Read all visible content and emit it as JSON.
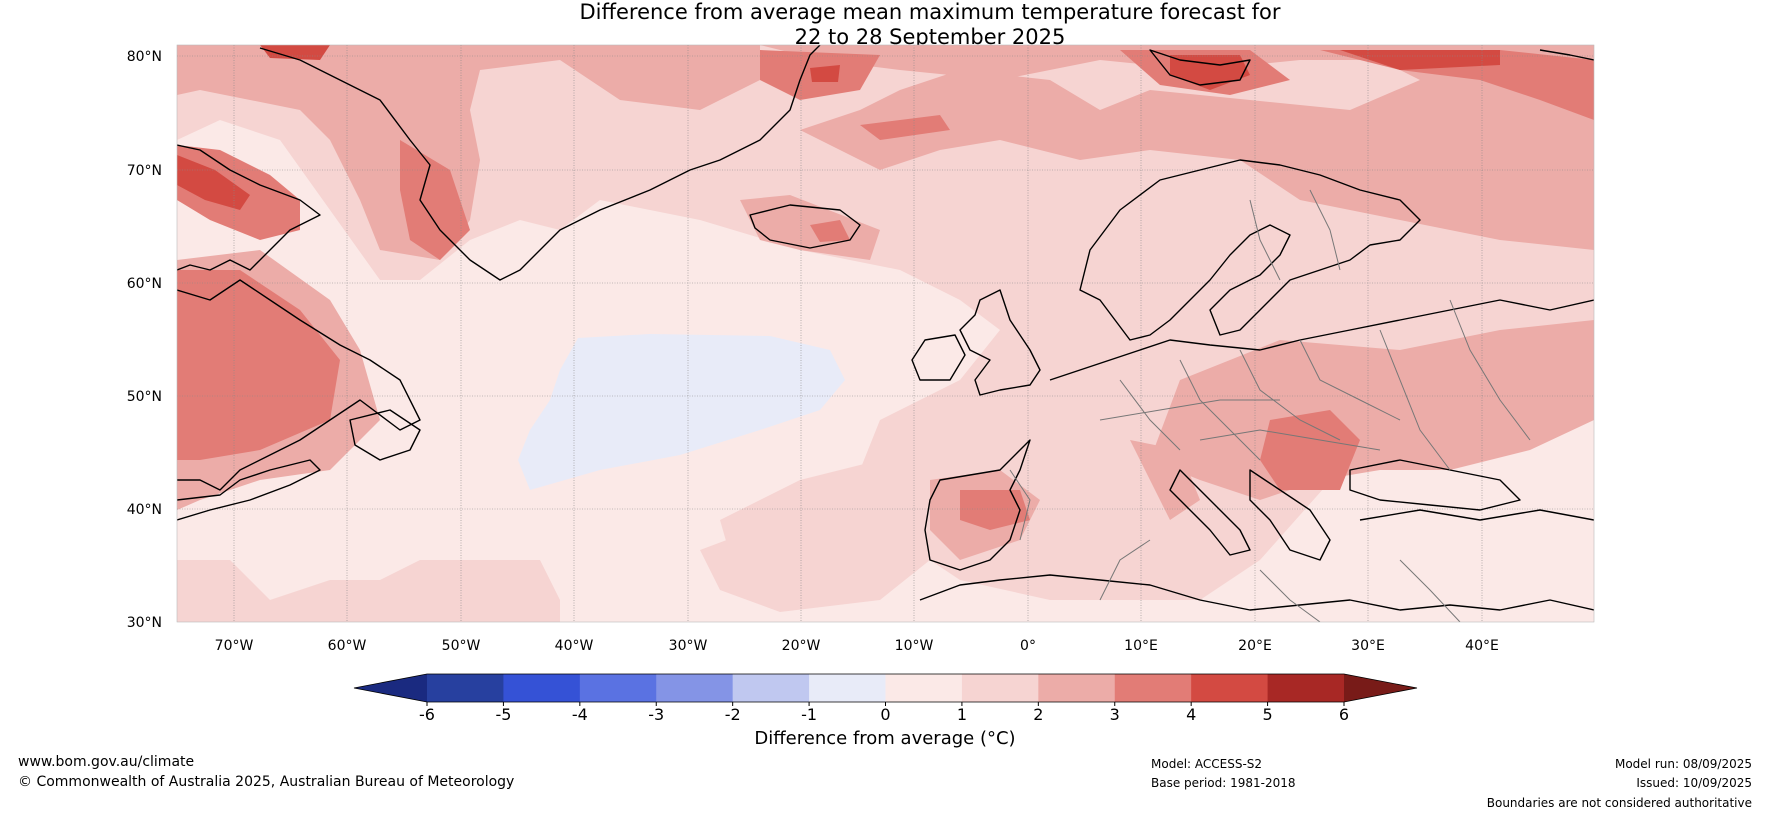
{
  "title_line1": "Difference from average mean maximum temperature forecast for",
  "title_line2": "22 to 28 September 2025",
  "lat_labels": [
    "80°N",
    "70°N",
    "60°N",
    "50°N",
    "40°N",
    "30°N"
  ],
  "lon_labels": [
    "70°W",
    "60°W",
    "50°W",
    "40°W",
    "30°W",
    "20°W",
    "10°W",
    "0°",
    "10°E",
    "20°E",
    "30°E",
    "40°E"
  ],
  "colorbar": {
    "ticks": [
      "-6",
      "-5",
      "-4",
      "-3",
      "-2",
      "-1",
      "0",
      "1",
      "2",
      "3",
      "4",
      "5",
      "6"
    ],
    "colors": [
      "#27409f",
      "#3552d6",
      "#5a72e2",
      "#8494e6",
      "#c0c8f0",
      "#e8ebf8",
      "#fbe9e7",
      "#f6d4d2",
      "#ecaca8",
      "#e27c76",
      "#d34a42",
      "#a82825"
    ],
    "under_color": "#1a2a80",
    "over_color": "#781b18",
    "label": "Difference from average (°C)"
  },
  "footer": {
    "site": "www.bom.gov.au/climate",
    "copyright": "© Commonwealth of Australia 2025, Australian Bureau of Meteorology",
    "model": "Model: ACCESS-S2",
    "base_period": "Base period: 1981-2018",
    "model_run": "Model run: 08/09/2025",
    "issued": "Issued: 10/09/2025",
    "disclaimer": "Boundaries are not considered authoritative"
  }
}
